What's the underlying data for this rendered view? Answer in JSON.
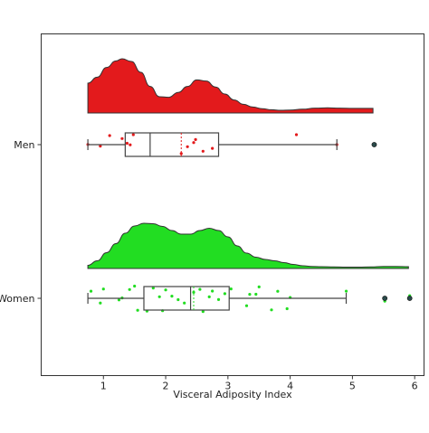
{
  "chart_data": {
    "type": "raincloud",
    "orientation": "horizontal",
    "xlabel": "Visceral Adiposity Index",
    "ylabel": "",
    "title": "",
    "xlim": [
      0.0,
      6.15
    ],
    "xticks": [
      1,
      2,
      3,
      4,
      5,
      6
    ],
    "categories": [
      "Men",
      "Women"
    ],
    "grid": false,
    "groups": [
      {
        "label": "Men",
        "color": "#e31a1c",
        "density": {
          "x": [
            0.75,
            0.9,
            1.05,
            1.2,
            1.3,
            1.45,
            1.6,
            1.75,
            1.9,
            2.05,
            2.2,
            2.35,
            2.5,
            2.65,
            2.8,
            2.95,
            3.1,
            3.25,
            3.4,
            3.55,
            3.7,
            3.85,
            4.0,
            4.2,
            4.4,
            4.6,
            4.8,
            5.0,
            5.2,
            5.33
          ],
          "y": [
            0.55,
            0.66,
            0.84,
            0.96,
            1.0,
            0.95,
            0.75,
            0.49,
            0.3,
            0.29,
            0.38,
            0.49,
            0.61,
            0.59,
            0.48,
            0.35,
            0.24,
            0.16,
            0.11,
            0.08,
            0.06,
            0.05,
            0.055,
            0.07,
            0.09,
            0.095,
            0.09,
            0.085,
            0.085,
            0.085
          ]
        },
        "box": {
          "whisker_low": 0.75,
          "q1": 1.35,
          "median": 1.75,
          "mean": 2.25,
          "q3": 2.85,
          "whisker_high": 4.75
        },
        "outliers": [
          5.35
        ],
        "points": [
          0.75,
          0.95,
          1.1,
          1.3,
          1.38,
          1.43,
          1.48,
          2.25,
          2.35,
          2.45,
          2.48,
          2.6,
          2.75,
          4.1,
          4.75
        ]
      },
      {
        "label": "Women",
        "color": "#22dd22",
        "density": {
          "x": [
            0.75,
            0.9,
            1.05,
            1.2,
            1.35,
            1.5,
            1.65,
            1.8,
            1.95,
            2.1,
            2.25,
            2.4,
            2.55,
            2.7,
            2.85,
            3.0,
            3.15,
            3.3,
            3.45,
            3.6,
            3.75,
            3.9,
            4.05,
            4.2,
            4.35,
            4.5,
            4.7,
            4.9,
            5.1,
            5.3,
            5.5,
            5.7,
            5.9
          ],
          "y": [
            0.07,
            0.17,
            0.35,
            0.55,
            0.78,
            0.94,
            1.0,
            0.99,
            0.93,
            0.84,
            0.76,
            0.76,
            0.84,
            0.89,
            0.84,
            0.7,
            0.5,
            0.34,
            0.25,
            0.2,
            0.17,
            0.13,
            0.09,
            0.06,
            0.045,
            0.04,
            0.035,
            0.03,
            0.03,
            0.035,
            0.045,
            0.045,
            0.04
          ]
        },
        "box": {
          "whisker_low": 0.75,
          "q1": 1.65,
          "median": 2.4,
          "mean": 2.45,
          "q3": 3.02,
          "whisker_high": 4.9
        },
        "outliers": [
          5.52,
          5.92
        ],
        "points": [
          0.8,
          0.95,
          1.0,
          1.25,
          1.3,
          1.42,
          1.5,
          1.55,
          1.7,
          1.8,
          1.9,
          1.95,
          2.0,
          2.1,
          2.2,
          2.3,
          2.45,
          2.55,
          2.6,
          2.7,
          2.75,
          2.85,
          2.95,
          3.05,
          3.3,
          3.35,
          3.45,
          3.5,
          3.7,
          3.8,
          3.95,
          4.0,
          4.9,
          5.52,
          5.92
        ]
      }
    ]
  }
}
